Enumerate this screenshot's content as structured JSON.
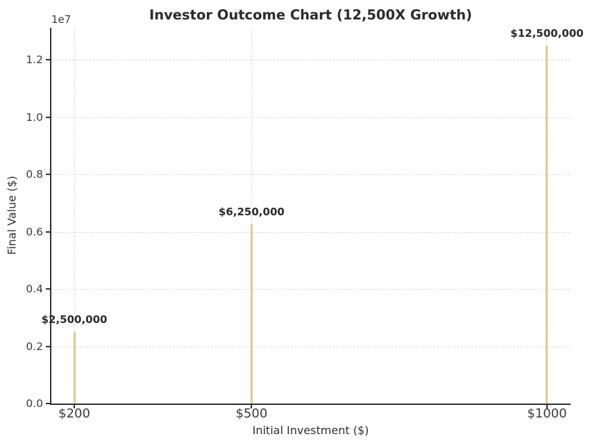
{
  "chart_data": {
    "type": "bar",
    "title": "Investor Outcome Chart (12,500X Growth)",
    "xlabel": "Initial Investment ($)",
    "ylabel": "Final Value ($)",
    "y_offset_text": "1e7",
    "categories": [
      "$200",
      "$500",
      "$1000"
    ],
    "x_values": [
      200,
      500,
      1000
    ],
    "values": [
      2500000,
      6250000,
      12500000
    ],
    "bar_labels": [
      "$2,500,000",
      "$6,250,000",
      "$12,500,000"
    ],
    "y_ticks": [
      0.0,
      0.2,
      0.4,
      0.6,
      0.8,
      1.0,
      1.2
    ],
    "y_tick_labels": [
      "0.0",
      "0.2",
      "0.4",
      "0.6",
      "0.8",
      "1.0",
      "1.2"
    ],
    "y_tick_multiplier": 10000000,
    "xlim": [
      160,
      1040
    ],
    "ylim": [
      0,
      13125000
    ],
    "grid": true,
    "legend": "none",
    "bar_color": "#ddc795",
    "text_color": "#2b2b2b",
    "grid_color": "#d9d9d9"
  }
}
